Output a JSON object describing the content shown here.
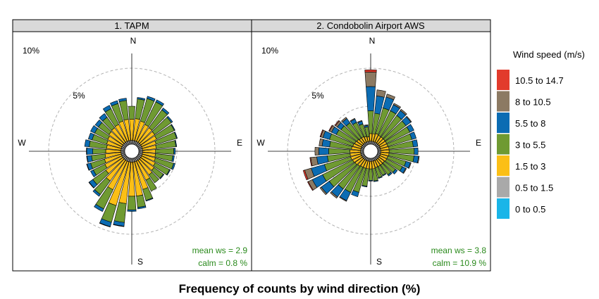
{
  "chart_data": {
    "type": "wind-rose",
    "xlabel": "Frequency of counts by wind direction (%)",
    "radial_max": 12,
    "rings": [
      5,
      10
    ],
    "ring_labels": [
      "5%",
      "10%"
    ],
    "direction_labels": [
      "N",
      "E",
      "S",
      "W"
    ],
    "direction_bins": 36,
    "direction_bin_width_deg": 10,
    "direction_angles_deg": [
      0,
      10,
      20,
      30,
      40,
      50,
      60,
      70,
      80,
      90,
      100,
      110,
      120,
      130,
      140,
      150,
      160,
      170,
      180,
      190,
      200,
      210,
      220,
      230,
      240,
      250,
      260,
      270,
      280,
      290,
      300,
      310,
      320,
      330,
      340,
      350
    ],
    "legend": {
      "title": "Wind speed (m/s)",
      "items": [
        {
          "label": "10.5 to 14.7",
          "color": "#e23b2c"
        },
        {
          "label": "8 to 10.5",
          "color": "#8c7a63"
        },
        {
          "label": "5.5 to 8",
          "color": "#0b6cb3"
        },
        {
          "label": "3 to 5.5",
          "color": "#6f9a32"
        },
        {
          "label": "1.5 to 3",
          "color": "#fbbf16"
        },
        {
          "label": "0.5 to 1.5",
          "color": "#a9a9a9"
        },
        {
          "label": "0 to 0.5",
          "color": "#1ab5e8"
        }
      ]
    },
    "panels": [
      {
        "title": "1. TAPM",
        "mean_ws_label": "mean ws = ",
        "mean_ws": "2.9",
        "calm_label": "calm = ",
        "calm": "0.8 %",
        "series": [
          {
            "name": "0.5 to 1.5",
            "values": [
              0.5,
              0.5,
              0.5,
              0.5,
              0.5,
              0.5,
              0.5,
              0.5,
              0.5,
              0.5,
              0.5,
              0.5,
              0.5,
              0.5,
              0.5,
              0.5,
              0.5,
              0.5,
              0.5,
              0.5,
              0.5,
              0.5,
              0.5,
              0.5,
              0.5,
              0.5,
              0.5,
              0.5,
              0.5,
              0.5,
              0.5,
              0.5,
              0.5,
              0.5,
              0.5,
              0.5
            ]
          },
          {
            "name": "1.5 to 3",
            "values": [
              2.8,
              2.9,
              2.7,
              2.5,
              2.4,
              2.3,
              2.2,
              1.9,
              1.8,
              1.7,
              1.7,
              1.8,
              2.0,
              2.2,
              2.4,
              2.8,
              3.8,
              4.5,
              4.5,
              5.5,
              6.0,
              4.2,
              3.4,
              2.8,
              2.5,
              2.3,
              2.1,
              2.0,
              1.9,
              2.0,
              2.1,
              2.3,
              2.4,
              2.5,
              2.7,
              2.8
            ]
          },
          {
            "name": "3 to 5.5",
            "values": [
              1.7,
              2.6,
              3.1,
              3.3,
              2.9,
              2.7,
              2.6,
              2.8,
              2.6,
              2.4,
              2.3,
              2.5,
              2.1,
              1.5,
              1.3,
              1.6,
              1.5,
              1.5,
              1.8,
              2.5,
              2.3,
              2.8,
              2.2,
              2.1,
              1.7,
              1.9,
              1.8,
              1.7,
              2.3,
              2.0,
              1.9,
              1.7,
              1.7,
              2.3,
              2.4,
              2.5
            ]
          },
          {
            "name": "5.5 to 8",
            "values": [
              0.0,
              0.2,
              0.3,
              0.3,
              0.3,
              0.2,
              0.1,
              0.1,
              0.1,
              0.2,
              0.2,
              0.2,
              0.1,
              0.1,
              0.0,
              0.0,
              0.1,
              0.2,
              0.2,
              0.5,
              0.6,
              0.4,
              0.3,
              0.6,
              0.4,
              0.5,
              0.6,
              0.8,
              0.6,
              0.5,
              0.6,
              0.5,
              0.6,
              0.5,
              0.4,
              0.3
            ]
          },
          {
            "name": "8 to 10.5",
            "values": [
              0,
              0,
              0,
              0,
              0,
              0,
              0,
              0,
              0,
              0,
              0,
              0,
              0,
              0,
              0,
              0,
              0,
              0,
              0,
              0.05,
              0.05,
              0,
              0,
              0.05,
              0,
              0.05,
              0.05,
              0.05,
              0,
              0,
              0,
              0,
              0,
              0,
              0,
              0
            ]
          },
          {
            "name": "10.5 to 14.7",
            "values": [
              0,
              0,
              0,
              0,
              0,
              0,
              0,
              0,
              0,
              0,
              0,
              0,
              0,
              0,
              0,
              0,
              0,
              0,
              0,
              0,
              0,
              0,
              0,
              0,
              0,
              0,
              0,
              0,
              0,
              0,
              0,
              0,
              0,
              0,
              0,
              0
            ]
          }
        ]
      },
      {
        "title": "2. Condobolin Airport AWS",
        "mean_ws_label": "mean ws = ",
        "mean_ws": "3.8",
        "calm_label": "calm = ",
        "calm": "10.9 %",
        "series": [
          {
            "name": "0.5 to 1.5",
            "values": [
              0.4,
              0.4,
              0.4,
              0.4,
              0.4,
              0.4,
              0.4,
              0.4,
              0.4,
              0.4,
              0.4,
              0.4,
              0.4,
              0.4,
              0.4,
              0.4,
              0.4,
              0.4,
              0.4,
              0.4,
              0.4,
              0.4,
              0.4,
              0.4,
              0.4,
              0.4,
              0.4,
              0.4,
              0.4,
              0.4,
              0.4,
              0.4,
              0.4,
              0.4,
              0.4,
              0.4
            ]
          },
          {
            "name": "1.5 to 3",
            "values": [
              1.0,
              1.0,
              1.1,
              1.0,
              1.0,
              1.0,
              1.0,
              1.0,
              1.1,
              1.1,
              1.1,
              1.0,
              1.0,
              0.9,
              0.9,
              0.9,
              0.9,
              1.0,
              1.0,
              1.0,
              1.0,
              1.0,
              1.1,
              1.2,
              1.3,
              1.4,
              1.4,
              1.4,
              1.2,
              1.1,
              1.0,
              0.9,
              0.8,
              0.8,
              0.7,
              0.6
            ]
          },
          {
            "name": "3 to 5.5",
            "values": [
              3.0,
              2.7,
              3.5,
              3.6,
              3.5,
              3.4,
              3.4,
              3.3,
              3.2,
              3.3,
              3.3,
              2.5,
              2.3,
              1.8,
              1.6,
              1.3,
              1.4,
              1.6,
              1.5,
              2.3,
              3.3,
              3.7,
              3.7,
              4.2,
              4.4,
              3.6,
              3.0,
              2.8,
              2.9,
              3.2,
              2.7,
              2.6,
              2.5,
              2.1,
              1.7,
              1.3
            ]
          },
          {
            "name": "5.5 to 8",
            "values": [
              3.2,
              2.3,
              1.5,
              0.9,
              0.8,
              0.8,
              0.6,
              0.6,
              0.6,
              0.5,
              0.6,
              0.6,
              0.5,
              0.3,
              0.2,
              0.1,
              0.1,
              0.1,
              0.1,
              0.1,
              0.6,
              1.2,
              1.3,
              1.3,
              1.5,
              1.8,
              1.4,
              1.3,
              1.0,
              0.9,
              0.7,
              0.6,
              0.7,
              0.5,
              0.4,
              0.2
            ]
          },
          {
            "name": "8 to 10.5",
            "values": [
              1.9,
              0.8,
              0.4,
              0.2,
              0.2,
              0.1,
              0.0,
              0.0,
              0.0,
              0.0,
              0.1,
              0.1,
              0.1,
              0.0,
              0.0,
              0.0,
              0.0,
              0.0,
              0.0,
              0.0,
              0.0,
              0.1,
              0.2,
              0.2,
              0.6,
              0.9,
              0.8,
              0.5,
              0.4,
              0.3,
              0.3,
              0.3,
              0.2,
              0.1,
              0.1,
              0.1
            ]
          },
          {
            "name": "10.5 to 14.7",
            "values": [
              0.3,
              0.0,
              0.0,
              0.0,
              0.0,
              0.0,
              0.0,
              0.0,
              0.0,
              0.0,
              0.0,
              0.0,
              0.0,
              0.0,
              0.0,
              0.0,
              0.0,
              0.0,
              0.0,
              0.0,
              0.0,
              0.0,
              0.0,
              0.0,
              0.1,
              0.2,
              0.1,
              0.0,
              0.0,
              0.1,
              0.1,
              0.1,
              0.0,
              0.0,
              0.0,
              0.0
            ]
          }
        ]
      }
    ]
  }
}
